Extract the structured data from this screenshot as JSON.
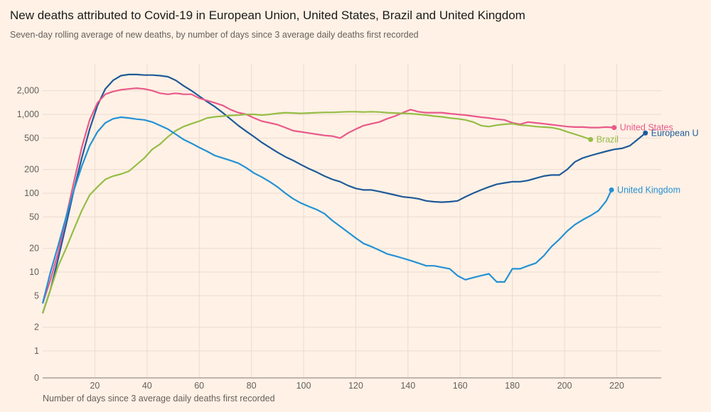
{
  "chart_data": {
    "type": "line",
    "title": "New deaths attributed to Covid-19 in European Union, United States, Brazil and United Kingdom",
    "subtitle": "Seven-day rolling average of new deaths, by number of days since 3 average daily deaths first recorded",
    "xlabel": "Number of days since 3 average daily deaths first recorded",
    "ylabel": "",
    "yscale": "log",
    "xlim": [
      0,
      240
    ],
    "ylim": [
      0,
      3000
    ],
    "grid": true,
    "x_ticks": [
      20,
      40,
      60,
      80,
      100,
      120,
      140,
      160,
      180,
      200,
      220
    ],
    "x_tick_labels": [
      "20",
      "40",
      "60",
      "80",
      "100",
      "120",
      "140",
      "160",
      "180",
      "200",
      "220"
    ],
    "y_ticks": [
      0,
      1,
      2,
      5,
      10,
      20,
      50,
      100,
      200,
      500,
      1000,
      2000
    ],
    "y_tick_labels": [
      "0",
      "1",
      "2",
      "5",
      "10",
      "20",
      "50",
      "100",
      "200",
      "500",
      "1,000",
      "2,000"
    ],
    "legend": "inline-end-labels",
    "series": [
      {
        "name": "European Union",
        "label": "European U",
        "color": "#1f5a99",
        "x": [
          0,
          3,
          6,
          9,
          12,
          15,
          18,
          21,
          24,
          27,
          30,
          33,
          36,
          39,
          42,
          45,
          48,
          51,
          54,
          57,
          60,
          63,
          66,
          69,
          72,
          75,
          78,
          81,
          84,
          87,
          90,
          93,
          96,
          99,
          102,
          105,
          108,
          111,
          114,
          117,
          120,
          123,
          126,
          129,
          132,
          135,
          138,
          141,
          144,
          147,
          150,
          153,
          156,
          159,
          162,
          165,
          168,
          171,
          174,
          177,
          180,
          183,
          186,
          189,
          192,
          195,
          198,
          201,
          204,
          207,
          210,
          213,
          216,
          219,
          222,
          225,
          228,
          231
        ],
        "values": [
          3,
          6,
          15,
          40,
          110,
          280,
          650,
          1300,
          2100,
          2700,
          3100,
          3200,
          3200,
          3150,
          3150,
          3100,
          3000,
          2700,
          2300,
          2000,
          1700,
          1450,
          1250,
          1050,
          870,
          720,
          610,
          520,
          440,
          380,
          330,
          290,
          260,
          230,
          205,
          185,
          165,
          150,
          140,
          125,
          115,
          110,
          110,
          105,
          100,
          95,
          90,
          88,
          85,
          80,
          78,
          77,
          78,
          80,
          90,
          100,
          110,
          120,
          130,
          135,
          140,
          140,
          145,
          155,
          165,
          170,
          170,
          200,
          250,
          280,
          300,
          320,
          340,
          360,
          370,
          400,
          480,
          580
        ]
      },
      {
        "name": "United States",
        "label": "United States",
        "color": "#e9598a",
        "x": [
          0,
          3,
          6,
          9,
          12,
          15,
          18,
          21,
          24,
          27,
          30,
          33,
          36,
          39,
          42,
          45,
          48,
          51,
          54,
          57,
          60,
          63,
          66,
          69,
          72,
          75,
          78,
          81,
          84,
          87,
          90,
          93,
          96,
          99,
          102,
          105,
          108,
          111,
          114,
          117,
          120,
          123,
          126,
          129,
          132,
          135,
          138,
          141,
          144,
          147,
          150,
          153,
          156,
          159,
          162,
          165,
          168,
          171,
          174,
          177,
          180,
          183,
          186,
          189,
          192,
          195,
          198,
          201,
          204,
          207,
          210,
          213,
          216,
          219
        ],
        "values": [
          4,
          8,
          18,
          50,
          140,
          380,
          850,
          1400,
          1800,
          1950,
          2050,
          2100,
          2150,
          2100,
          2000,
          1850,
          1800,
          1850,
          1800,
          1800,
          1600,
          1500,
          1400,
          1300,
          1150,
          1050,
          1000,
          900,
          820,
          780,
          740,
          680,
          620,
          600,
          580,
          560,
          540,
          530,
          500,
          580,
          650,
          720,
          760,
          800,
          880,
          950,
          1050,
          1150,
          1080,
          1050,
          1050,
          1050,
          1020,
          1000,
          980,
          950,
          920,
          900,
          870,
          850,
          780,
          750,
          800,
          780,
          760,
          740,
          720,
          700,
          690,
          690,
          680,
          680,
          690,
          680
        ]
      },
      {
        "name": "Brazil",
        "label": "Brazil",
        "color": "#96bd46",
        "x": [
          0,
          3,
          6,
          9,
          12,
          15,
          18,
          21,
          24,
          27,
          30,
          33,
          36,
          39,
          42,
          45,
          48,
          51,
          54,
          57,
          60,
          63,
          66,
          69,
          72,
          75,
          78,
          81,
          84,
          87,
          90,
          93,
          96,
          99,
          102,
          105,
          108,
          111,
          114,
          117,
          120,
          123,
          126,
          129,
          132,
          135,
          138,
          141,
          144,
          147,
          150,
          153,
          156,
          159,
          162,
          165,
          168,
          171,
          174,
          177,
          180,
          183,
          186,
          189,
          192,
          195,
          198,
          201,
          204,
          207,
          210
        ],
        "values": [
          3,
          6,
          12,
          20,
          35,
          60,
          95,
          120,
          150,
          165,
          175,
          190,
          230,
          280,
          360,
          420,
          520,
          620,
          700,
          760,
          820,
          900,
          930,
          950,
          970,
          980,
          1000,
          1000,
          980,
          1000,
          1030,
          1050,
          1040,
          1030,
          1040,
          1050,
          1060,
          1060,
          1070,
          1080,
          1080,
          1070,
          1080,
          1070,
          1050,
          1040,
          1030,
          1020,
          1000,
          980,
          950,
          930,
          900,
          880,
          850,
          800,
          720,
          700,
          730,
          750,
          760,
          730,
          720,
          700,
          690,
          680,
          650,
          600,
          560,
          520,
          480
        ]
      },
      {
        "name": "United Kingdom",
        "label": "United Kingdom",
        "color": "#2491d4",
        "x": [
          0,
          3,
          6,
          9,
          12,
          15,
          18,
          21,
          24,
          27,
          30,
          33,
          36,
          39,
          42,
          45,
          48,
          51,
          54,
          57,
          60,
          63,
          66,
          69,
          72,
          75,
          78,
          81,
          84,
          87,
          90,
          93,
          96,
          99,
          102,
          105,
          108,
          111,
          114,
          117,
          120,
          123,
          126,
          129,
          132,
          135,
          138,
          141,
          144,
          147,
          150,
          153,
          156,
          159,
          162,
          165,
          168,
          171,
          174,
          177,
          180,
          183,
          186,
          189,
          192,
          195,
          198,
          201,
          204,
          207,
          210,
          213,
          216,
          218
        ],
        "values": [
          4,
          10,
          22,
          50,
          110,
          220,
          400,
          600,
          780,
          880,
          920,
          900,
          870,
          850,
          800,
          720,
          650,
          560,
          480,
          430,
          380,
          340,
          300,
          280,
          260,
          240,
          210,
          180,
          160,
          140,
          120,
          100,
          85,
          75,
          68,
          62,
          55,
          45,
          38,
          32,
          27,
          23,
          21,
          19,
          17,
          16,
          15,
          14,
          13,
          12,
          12,
          11.5,
          11,
          9,
          8,
          8.5,
          9,
          9.5,
          7.5,
          7.5,
          11,
          11,
          12,
          13,
          16,
          21,
          26,
          33,
          40,
          46,
          52,
          60,
          80,
          110
        ]
      }
    ]
  },
  "colors": {
    "background": "#fff1e5",
    "grid": "#ebdcd1",
    "axis": "#9a8f87",
    "text": "#66605c"
  }
}
